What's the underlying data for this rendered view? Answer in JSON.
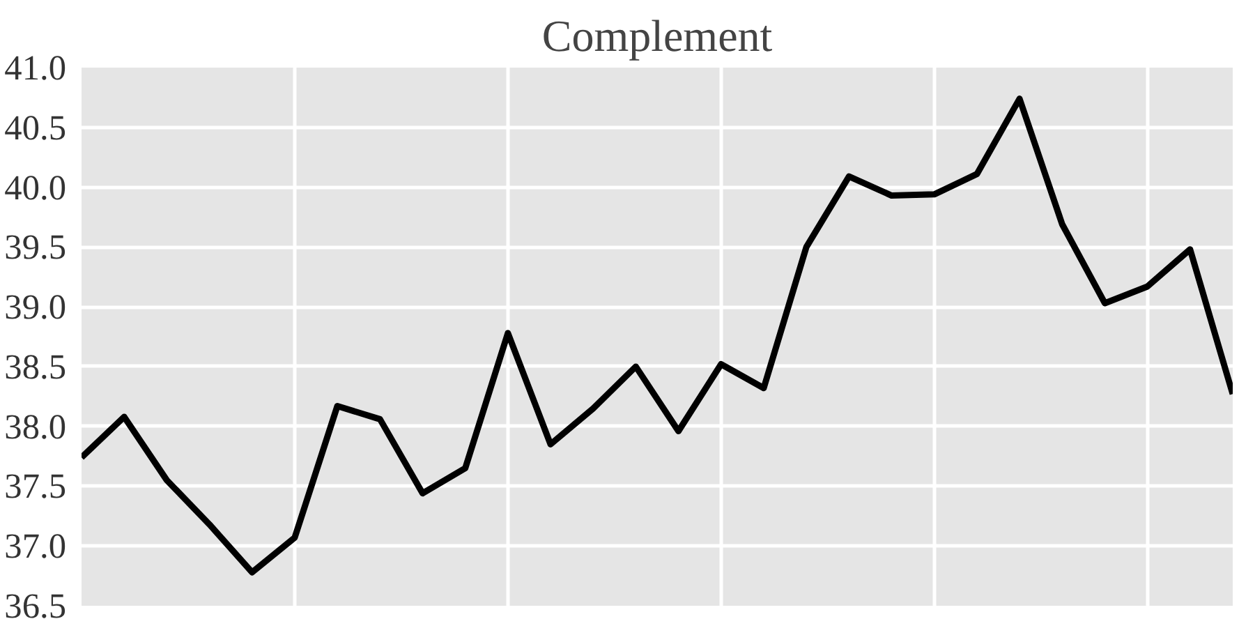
{
  "chart_data": {
    "type": "line",
    "title": "Complement",
    "categories": [
      null,
      null,
      null,
      null,
      null,
      null,
      null,
      null,
      null,
      null,
      null,
      null,
      null,
      null,
      null,
      null,
      null,
      null,
      null,
      null,
      null,
      null,
      null,
      null,
      null,
      null,
      null,
      null
    ],
    "series": [
      {
        "color": "#000000",
        "values": [
          37.74,
          38.08,
          37.55,
          37.18,
          36.78,
          37.07,
          38.17,
          38.06,
          37.44,
          37.65,
          38.78,
          37.85,
          38.15,
          38.5,
          37.96,
          38.52,
          38.32,
          39.5,
          40.09,
          39.93,
          39.94,
          40.11,
          40.74,
          39.69,
          39.03,
          39.17,
          39.48,
          38.27
        ]
      }
    ],
    "ylim": [
      36.5,
      41.0
    ],
    "yticks": [
      {
        "value": 36.5,
        "label": "36.5"
      },
      {
        "value": 37.0,
        "label": "37.0"
      },
      {
        "value": 37.5,
        "label": "37.5"
      },
      {
        "value": 38.0,
        "label": "38.0"
      },
      {
        "value": 38.5,
        "label": "38.5"
      },
      {
        "value": 39.0,
        "label": "39.0"
      },
      {
        "value": 39.5,
        "label": "39.5"
      },
      {
        "value": 40.0,
        "label": "40.0"
      },
      {
        "value": 40.5,
        "label": "40.5"
      },
      {
        "value": 41.0,
        "label": "41.0"
      }
    ],
    "grid": true,
    "tick_labels": "y",
    "line_style": "solid",
    "marker": "none"
  }
}
